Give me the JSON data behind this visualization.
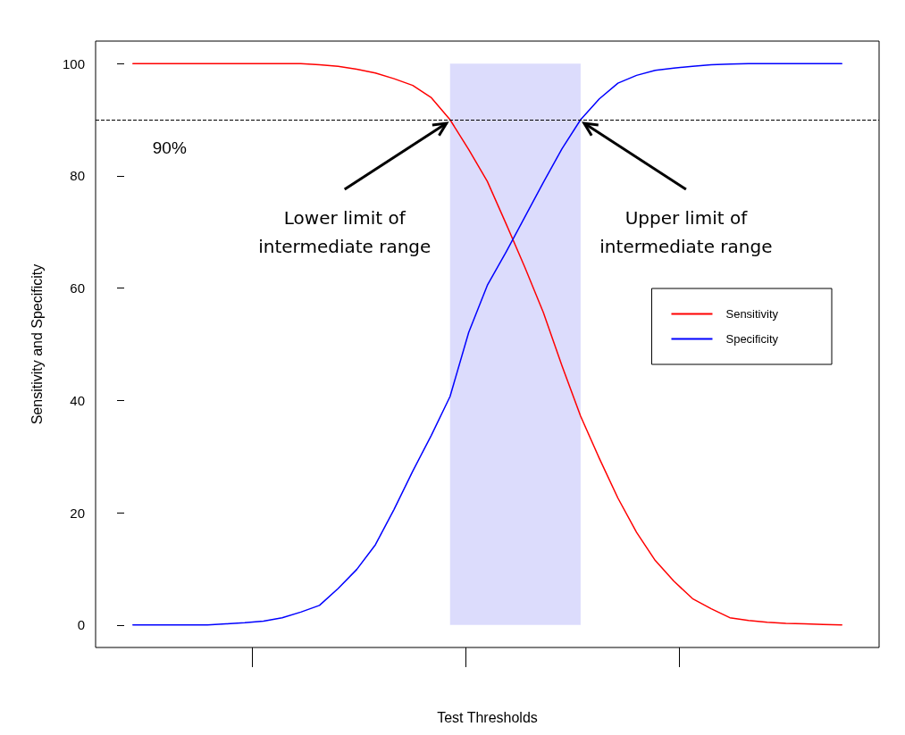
{
  "chart_data": {
    "type": "line",
    "xlabel": "Test Thresholds",
    "ylabel": "Sensitivity and Specificity",
    "categories": [
      null,
      null,
      null,
      null,
      null,
      null,
      null,
      null,
      null,
      null,
      null,
      null,
      null,
      null,
      null,
      null,
      null,
      null,
      null,
      null,
      null,
      null,
      null,
      null,
      null,
      null,
      null,
      null,
      null,
      null,
      null,
      null,
      null,
      null,
      null,
      null,
      null,
      null,
      null
    ],
    "ylim": [
      -4,
      104
    ],
    "yticks": [
      0,
      20,
      40,
      60,
      80,
      100
    ],
    "series": [
      {
        "name": "Sensitivity",
        "color": "#ff0000",
        "values": [
          100,
          100,
          100,
          100,
          100,
          100,
          100,
          100,
          100,
          100,
          99.8,
          99.5,
          99,
          98.3,
          97.3,
          96.1,
          93.9,
          90,
          84.7,
          79,
          71.5,
          63.8,
          55.7,
          46.2,
          37.2,
          29.7,
          22.6,
          16.5,
          11.5,
          7.8,
          4.7,
          2.9,
          1.3,
          0.8,
          0.5,
          0.3,
          0.2,
          0.1,
          0
        ]
      },
      {
        "name": "Specificity",
        "color": "#0000ff",
        "values": [
          0,
          0,
          0,
          0,
          0,
          0.2,
          0.4,
          0.7,
          1.3,
          2.3,
          3.5,
          6.5,
          9.9,
          14.3,
          20.6,
          27.4,
          33.8,
          40.7,
          52.1,
          60.5,
          66.4,
          72.6,
          78.8,
          84.8,
          90,
          93.7,
          96.5,
          97.9,
          98.8,
          99.2,
          99.5,
          99.8,
          99.9,
          100,
          100,
          100,
          100,
          100,
          100
        ]
      }
    ],
    "ref_lines": [
      {
        "axis": "y",
        "value": 90,
        "label": "90%",
        "line_style": "dashed",
        "color": "#000000"
      }
    ],
    "annotations": [
      "Lower limit of\nintermediate range",
      "Upper limit of\nintermediate range"
    ],
    "legend": "right",
    "grid": false,
    "marker": "none",
    "line_style": "solid"
  }
}
